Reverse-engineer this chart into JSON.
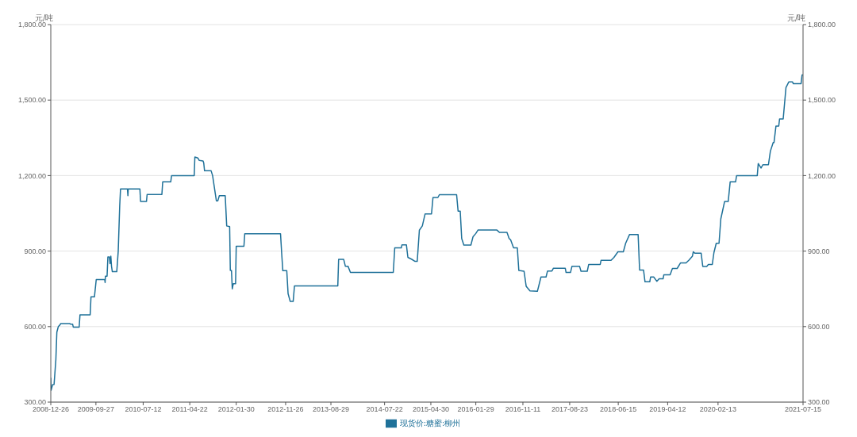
{
  "chart_data": {
    "type": "line",
    "ylabel": "元/吨",
    "y2label": "元/吨",
    "ylim": [
      300,
      1800
    ],
    "yticks": [
      {
        "value": 300,
        "label": "300.00"
      },
      {
        "value": 600,
        "label": "600.00"
      },
      {
        "value": 900,
        "label": "900.00"
      },
      {
        "value": 1200,
        "label": "1,200.00"
      },
      {
        "value": 1500,
        "label": "1,500.00"
      },
      {
        "value": 1800,
        "label": "1,800.00"
      }
    ],
    "y2lim": [
      300,
      1800
    ],
    "y2ticks": [
      {
        "value": 300,
        "label": "300.00"
      },
      {
        "value": 600,
        "label": "600.00"
      },
      {
        "value": 900,
        "label": "900.00"
      },
      {
        "value": 1200,
        "label": "1,200.00"
      },
      {
        "value": 1500,
        "label": "1,500.00"
      },
      {
        "value": 1800,
        "label": "1,800.00"
      }
    ],
    "xlim": [
      "2008-12-26",
      "2021-07-15"
    ],
    "xticks": [
      "2008-12-26",
      "2009-09-27",
      "2010-07-12",
      "2011-04-22",
      "2012-01-30",
      "2012-11-26",
      "2013-08-29",
      "2014-07-22",
      "2015-04-30",
      "2016-01-29",
      "2016-11-11",
      "2017-08-23",
      "2018-06-15",
      "2019-04-12",
      "2020-02-13",
      "2021-07-15"
    ],
    "grid": "y",
    "legend": "bottom",
    "marker": "none",
    "line_style": "solid",
    "x": [
      "2008-12-26",
      "2008-12-28",
      "2009-01-06",
      "2009-01-15",
      "2009-01-26",
      "2009-02-01",
      "2009-02-10",
      "2009-02-19",
      "2009-02-25",
      "2009-04-20",
      "2009-04-25",
      "2009-05-08",
      "2009-05-12",
      "2009-06-17",
      "2009-06-22",
      "2009-08-23",
      "2009-08-28",
      "2009-09-18",
      "2009-09-29",
      "2009-11-20",
      "2009-11-22",
      "2009-11-24",
      "2009-12-04",
      "2009-12-09",
      "2009-12-18",
      "2009-12-22",
      "2009-12-27",
      "2009-12-31",
      "2010-01-05",
      "2010-02-01",
      "2010-02-10",
      "2010-02-19",
      "2010-02-24",
      "2010-04-07",
      "2010-04-10",
      "2010-04-12",
      "2010-06-22",
      "2010-06-26",
      "2010-08-01",
      "2010-08-05",
      "2010-11-03",
      "2010-11-08",
      "2010-12-27",
      "2011-01-01",
      "2011-05-19",
      "2011-05-23",
      "2011-06-10",
      "2011-06-19",
      "2011-07-12",
      "2011-07-16",
      "2011-07-21",
      "2011-08-30",
      "2011-09-08",
      "2011-10-01",
      "2011-10-10",
      "2011-10-19",
      "2011-11-24",
      "2011-12-03",
      "2011-12-21",
      "2011-12-25",
      "2012-01-01",
      "2012-01-06",
      "2012-01-12",
      "2012-01-26",
      "2012-01-30",
      "2012-03-17",
      "2012-03-22",
      "2012-10-26",
      "2012-11-02",
      "2012-11-09",
      "2012-12-03",
      "2012-12-11",
      "2012-12-24",
      "2013-01-11",
      "2013-01-19",
      "2013-10-10",
      "2013-10-15",
      "2013-11-15",
      "2013-11-25",
      "2013-12-11",
      "2013-12-26",
      "2014-09-13",
      "2014-09-22",
      "2014-11-01",
      "2014-11-05",
      "2014-12-02",
      "2014-12-11",
      "2015-01-02",
      "2015-01-24",
      "2015-02-06",
      "2015-02-19",
      "2015-03-09",
      "2015-03-26",
      "2015-05-04",
      "2015-05-13",
      "2015-06-12",
      "2015-06-21",
      "2015-10-04",
      "2015-10-13",
      "2015-10-26",
      "2015-11-04",
      "2015-11-17",
      "2015-12-30",
      "2016-01-12",
      "2016-01-29",
      "2016-02-12",
      "2016-06-04",
      "2016-06-22",
      "2016-08-06",
      "2016-08-19",
      "2016-08-28",
      "2016-09-15",
      "2016-10-08",
      "2016-10-17",
      "2016-11-18",
      "2016-12-01",
      "2016-12-24",
      "2017-02-07",
      "2017-02-15",
      "2017-03-01",
      "2017-04-01",
      "2017-04-10",
      "2017-05-07",
      "2017-05-16",
      "2017-07-27",
      "2017-08-01",
      "2017-08-28",
      "2017-09-06",
      "2017-10-22",
      "2017-10-31",
      "2017-12-08",
      "2017-12-17",
      "2018-02-25",
      "2018-03-02",
      "2018-05-02",
      "2018-05-20",
      "2018-06-13",
      "2018-07-16",
      "2018-07-30",
      "2018-08-23",
      "2018-10-14",
      "2018-10-23",
      "2018-11-16",
      "2018-11-25",
      "2018-12-24",
      "2018-12-29",
      "2019-01-17",
      "2019-02-05",
      "2019-02-19",
      "2019-03-15",
      "2019-03-20",
      "2019-04-27",
      "2019-05-11",
      "2019-06-09",
      "2019-06-29",
      "2019-08-02",
      "2019-08-21",
      "2019-09-10",
      "2019-09-15",
      "2019-09-24",
      "2019-11-02",
      "2019-11-12",
      "2019-12-06",
      "2019-12-16",
      "2020-01-09",
      "2020-01-19",
      "2020-02-02",
      "2020-02-19",
      "2020-03-01",
      "2020-03-24",
      "2020-04-15",
      "2020-04-27",
      "2020-05-30",
      "2020-06-05",
      "2020-10-09",
      "2020-10-15",
      "2020-11-01",
      "2020-11-12",
      "2020-12-16",
      "2020-12-28",
      "2021-01-14",
      "2021-01-19",
      "2021-01-31",
      "2021-02-17",
      "2021-02-22",
      "2021-03-16",
      "2021-04-02",
      "2021-04-19",
      "2021-05-12",
      "2021-05-17",
      "2021-07-03",
      "2021-07-09",
      "2021-07-15"
    ],
    "series": [
      {
        "name": "现货价:糖蜜:柳州",
        "color": "#1f7199",
        "values": [
          397,
          347,
          369,
          370,
          469,
          578,
          600,
          606,
          612,
          612,
          610,
          610,
          598,
          598,
          647,
          647,
          718,
          718,
          787,
          787,
          775,
          800,
          800,
          877,
          877,
          850,
          880,
          840,
          818,
          818,
          900,
          1080,
          1147,
          1147,
          1120,
          1147,
          1147,
          1097,
          1097,
          1125,
          1125,
          1175,
          1175,
          1200,
          1200,
          1274,
          1270,
          1260,
          1258,
          1250,
          1219,
          1219,
          1200,
          1100,
          1100,
          1120,
          1120,
          1000,
          997,
          823,
          823,
          750,
          770,
          770,
          919,
          919,
          969,
          969,
          891,
          822,
          822,
          731,
          700,
          700,
          762,
          762,
          867,
          867,
          840,
          840,
          815,
          815,
          913,
          913,
          925,
          925,
          875,
          868,
          859,
          859,
          983,
          1000,
          1048,
          1048,
          1113,
          1113,
          1124,
          1124,
          1059,
          1059,
          950,
          924,
          924,
          957,
          970,
          984,
          984,
          974,
          974,
          950,
          945,
          913,
          913,
          823,
          820,
          760,
          742,
          740,
          760,
          797,
          797,
          821,
          821,
          832,
          832,
          815,
          815,
          840,
          840,
          820,
          820,
          847,
          847,
          863,
          863,
          875,
          897,
          897,
          931,
          966,
          966,
          825,
          825,
          778,
          778,
          797,
          797,
          780,
          790,
          790,
          806,
          806,
          831,
          831,
          853,
          853,
          865,
          880,
          897,
          892,
          892,
          839,
          839,
          847,
          847,
          894,
          931,
          931,
          1028,
          1097,
          1097,
          1175,
          1175,
          1200,
          1200,
          1248,
          1230,
          1243,
          1243,
          1297,
          1331,
          1331,
          1397,
          1397,
          1425,
          1425,
          1550,
          1572,
          1572,
          1565,
          1565,
          1600,
          1600
        ]
      }
    ]
  }
}
